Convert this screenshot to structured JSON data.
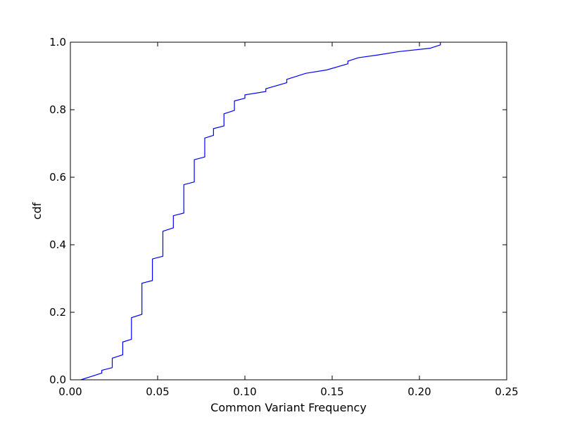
{
  "chart_data": {
    "type": "line",
    "title": "",
    "xlabel": "Common Variant Frequency",
    "ylabel": "cdf",
    "xlim": [
      0.0,
      0.25
    ],
    "ylim": [
      0.0,
      1.0
    ],
    "x_ticks": [
      "0.00",
      "0.05",
      "0.10",
      "0.15",
      "0.20",
      "0.25"
    ],
    "y_ticks": [
      "0.0",
      "0.2",
      "0.4",
      "0.6",
      "0.8",
      "1.0"
    ],
    "grid": false,
    "legend": "none",
    "series": [
      {
        "color": "#0000ff",
        "x": [
          0.006,
          0.018,
          0.018,
          0.024,
          0.024,
          0.03,
          0.03,
          0.035,
          0.035,
          0.041,
          0.041,
          0.047,
          0.047,
          0.053,
          0.053,
          0.059,
          0.059,
          0.065,
          0.065,
          0.071,
          0.071,
          0.077,
          0.077,
          0.082,
          0.082,
          0.088,
          0.088,
          0.094,
          0.094,
          0.1,
          0.1,
          0.112,
          0.112,
          0.124,
          0.124,
          0.135,
          0.147,
          0.159,
          0.159,
          0.165,
          0.176,
          0.188,
          0.206,
          0.212,
          0.212
        ],
        "y": [
          0.0,
          0.02,
          0.028,
          0.036,
          0.064,
          0.074,
          0.112,
          0.12,
          0.184,
          0.194,
          0.286,
          0.294,
          0.358,
          0.366,
          0.44,
          0.45,
          0.486,
          0.494,
          0.578,
          0.586,
          0.652,
          0.66,
          0.716,
          0.724,
          0.744,
          0.752,
          0.788,
          0.798,
          0.826,
          0.834,
          0.844,
          0.854,
          0.862,
          0.88,
          0.89,
          0.908,
          0.918,
          0.936,
          0.944,
          0.954,
          0.962,
          0.972,
          0.982,
          0.992,
          1.0
        ]
      }
    ]
  }
}
